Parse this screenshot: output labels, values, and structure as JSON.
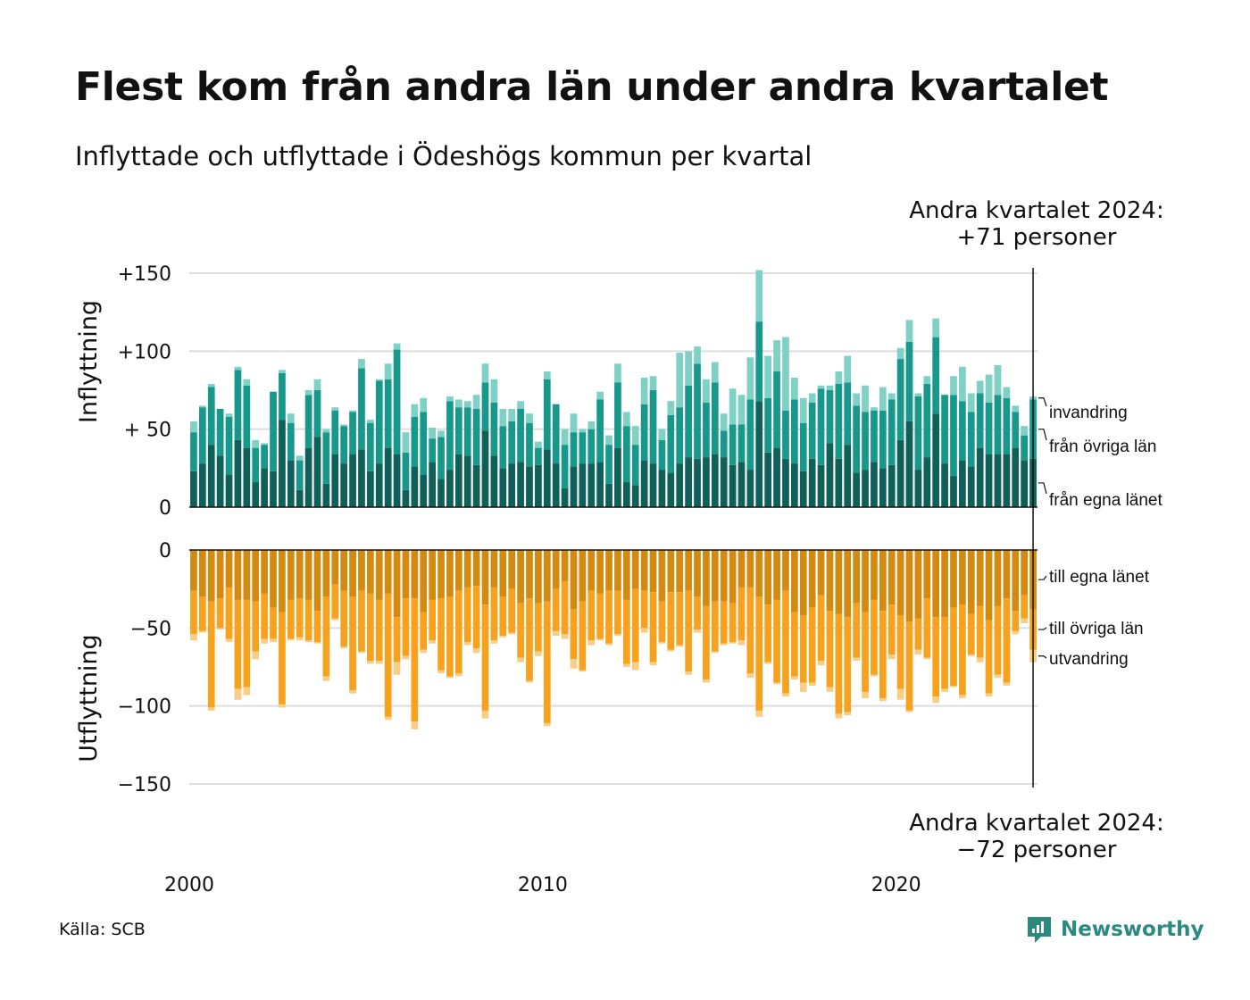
{
  "header": {
    "title": "Flest kom från andra län under andra kvartalet",
    "subtitle": "Inflyttade och utflyttade i Ödeshögs kommun per kvartal"
  },
  "footer": {
    "source": "Källa: SCB",
    "brand": "Newsworthy"
  },
  "colors": {
    "in_own": "#0e6058",
    "in_other": "#17988a",
    "in_immig": "#7fd0c5",
    "out_own": "#d28a10",
    "out_other": "#f7a21e",
    "out_emig": "#f8cd85",
    "grid": "#dddddd",
    "brand": "#2a8a80"
  },
  "chart_data": {
    "type": "bar",
    "stacked": true,
    "start_year": 2000,
    "quarters_per_year": 4,
    "x_ticks": [
      "2000",
      "2010",
      "2020"
    ],
    "top_panel": {
      "ylabel": "Inflyttning",
      "ylim": [
        0,
        150
      ],
      "ticks": [
        "+150",
        "+100",
        "+ 50",
        "0"
      ]
    },
    "bottom_panel": {
      "ylabel": "Utflyttning",
      "ylim": [
        -150,
        0
      ],
      "ticks": [
        "0",
        "−50",
        "−100",
        "−150"
      ]
    },
    "annotation_top": [
      "Andra kvartalet 2024:",
      "+71 personer"
    ],
    "annotation_bottom": [
      "Andra kvartalet 2024:",
      "−72 personer"
    ],
    "legend_in": [
      "invandring",
      "från övriga län",
      "från egna länet"
    ],
    "legend_out": [
      "till egna länet",
      "till övriga län",
      "utvandring"
    ],
    "in_own": [
      23,
      28,
      40,
      33,
      21,
      43,
      38,
      16,
      25,
      23,
      56,
      30,
      11,
      38,
      45,
      15,
      34,
      28,
      34,
      37,
      23,
      28,
      38,
      34,
      11,
      26,
      21,
      29,
      18,
      24,
      34,
      33,
      27,
      49,
      33,
      25,
      28,
      29,
      26,
      27,
      37,
      28,
      12,
      26,
      28,
      28,
      29,
      15,
      38,
      16,
      14,
      30,
      28,
      24,
      22,
      28,
      32,
      31,
      32,
      34,
      32,
      27,
      29,
      24,
      68,
      35,
      38,
      31,
      28,
      23,
      31,
      27,
      41,
      31,
      40,
      22,
      24,
      29,
      25,
      27,
      43,
      55,
      24,
      32,
      60,
      28,
      20,
      30,
      26,
      38,
      34,
      34,
      34,
      38,
      30,
      31
    ],
    "in_other": [
      25,
      36,
      37,
      30,
      37,
      45,
      40,
      22,
      15,
      51,
      30,
      24,
      19,
      34,
      30,
      33,
      28,
      24,
      27,
      52,
      31,
      53,
      44,
      67,
      24,
      32,
      40,
      15,
      27,
      44,
      30,
      31,
      36,
      31,
      34,
      27,
      27,
      34,
      28,
      11,
      45,
      38,
      28,
      22,
      20,
      22,
      40,
      25,
      42,
      36,
      26,
      36,
      47,
      19,
      37,
      36,
      46,
      61,
      35,
      46,
      17,
      26,
      24,
      45,
      51,
      35,
      49,
      31,
      41,
      31,
      36,
      49,
      34,
      48,
      40,
      43,
      37,
      33,
      37,
      42,
      52,
      51,
      47,
      47,
      49,
      44,
      52,
      38,
      35,
      35,
      33,
      38,
      36,
      23,
      16,
      38
    ],
    "in_immig": [
      7,
      1,
      2,
      0,
      2,
      2,
      4,
      5,
      1,
      0,
      2,
      6,
      3,
      3,
      7,
      2,
      2,
      1,
      1,
      6,
      2,
      1,
      10,
      4,
      13,
      8,
      9,
      7,
      4,
      3,
      5,
      4,
      9,
      12,
      15,
      11,
      8,
      5,
      6,
      4,
      5,
      0,
      10,
      12,
      2,
      5,
      5,
      6,
      12,
      9,
      12,
      17,
      9,
      7,
      9,
      35,
      22,
      11,
      15,
      13,
      11,
      23,
      19,
      27,
      33,
      27,
      20,
      47,
      14,
      16,
      6,
      2,
      3,
      8,
      17,
      8,
      17,
      2,
      15,
      4,
      7,
      14,
      2,
      5,
      12,
      0,
      12,
      22,
      12,
      8,
      18,
      19,
      7,
      4,
      6,
      2
    ],
    "out_own": [
      -26,
      -30,
      -33,
      -31,
      -24,
      -32,
      -32,
      -33,
      -28,
      -37,
      -40,
      -32,
      -31,
      -32,
      -39,
      -30,
      -22,
      -26,
      -30,
      -26,
      -28,
      -32,
      -28,
      -43,
      -31,
      -31,
      -40,
      -32,
      -31,
      -30,
      -26,
      -24,
      -23,
      -35,
      -24,
      -30,
      -25,
      -34,
      -31,
      -34,
      -33,
      -25,
      -20,
      -38,
      -33,
      -26,
      -28,
      -26,
      -26,
      -32,
      -25,
      -26,
      -27,
      -33,
      -27,
      -27,
      -26,
      -30,
      -36,
      -33,
      -33,
      -34,
      -24,
      -24,
      -30,
      -35,
      -32,
      -26,
      -40,
      -42,
      -37,
      -29,
      -39,
      -41,
      -43,
      -34,
      -40,
      -32,
      -39,
      -35,
      -42,
      -46,
      -44,
      -31,
      -43,
      -43,
      -37,
      -35,
      -41,
      -36,
      -45,
      -36,
      -31,
      -39,
      -29,
      -38
    ],
    "out_other": [
      -28,
      -22,
      -68,
      -19,
      -33,
      -57,
      -56,
      -32,
      -29,
      -20,
      -59,
      -25,
      -25,
      -26,
      -20,
      -51,
      -22,
      -36,
      -60,
      -39,
      -43,
      -39,
      -79,
      -29,
      -37,
      -79,
      -24,
      -26,
      -46,
      -51,
      -53,
      -35,
      -40,
      -68,
      -34,
      -25,
      -28,
      -35,
      -53,
      -31,
      -78,
      -27,
      -34,
      -32,
      -44,
      -32,
      -29,
      -34,
      -28,
      -41,
      -47,
      -24,
      -45,
      -26,
      -37,
      -34,
      -52,
      -21,
      -47,
      -32,
      -27,
      -25,
      -34,
      -55,
      -73,
      -37,
      -53,
      -66,
      -41,
      -43,
      -48,
      -42,
      -49,
      -64,
      -61,
      -35,
      -51,
      -48,
      -56,
      -32,
      -47,
      -57,
      -20,
      -38,
      -51,
      -46,
      -50,
      -58,
      -26,
      -33,
      -47,
      -44,
      -54,
      -13,
      -15,
      -26
    ],
    "out_emig": [
      -4,
      -1,
      -2,
      -1,
      -2,
      -7,
      -5,
      -5,
      -3,
      -2,
      -2,
      -1,
      -2,
      -1,
      -1,
      -3,
      -1,
      -1,
      -2,
      -1,
      -2,
      -2,
      -2,
      -8,
      -2,
      -5,
      -2,
      -2,
      -2,
      -1,
      -2,
      -2,
      -3,
      -5,
      -2,
      -1,
      -1,
      -3,
      -1,
      -3,
      -2,
      -3,
      -3,
      -6,
      -1,
      -3,
      -1,
      -1,
      -1,
      -2,
      -5,
      -3,
      -2,
      -1,
      -1,
      -1,
      -2,
      -2,
      -2,
      -1,
      -1,
      -1,
      -3,
      -3,
      -4,
      -1,
      -1,
      -2,
      -2,
      -6,
      -2,
      -3,
      -3,
      -3,
      -2,
      -2,
      -4,
      -1,
      -2,
      -3,
      -7,
      -1,
      -3,
      -1,
      -4,
      -2,
      -1,
      -2,
      -1,
      -3,
      -2,
      -2,
      -2,
      -2,
      -3,
      -8
    ]
  }
}
